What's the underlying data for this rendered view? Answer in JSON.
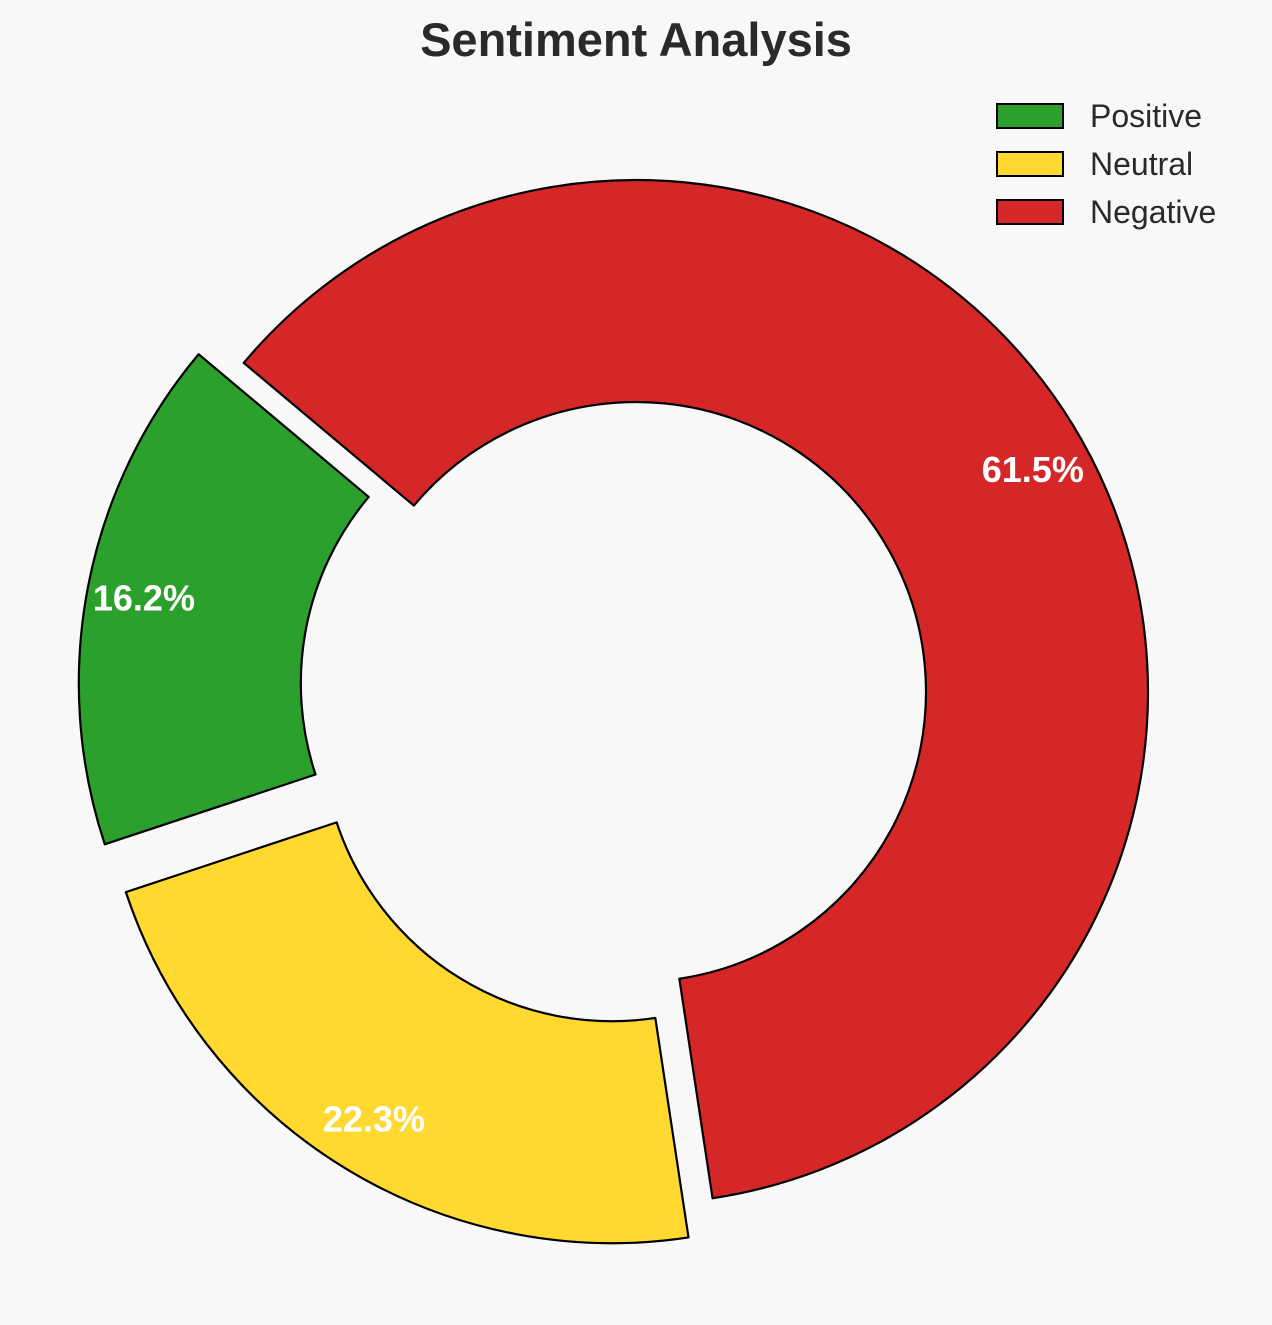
{
  "chart_data": {
    "type": "pie",
    "variant": "donut",
    "title": "Sentiment Analysis",
    "categories": [
      "Positive",
      "Neutral",
      "Negative"
    ],
    "values": [
      16.2,
      22.3,
      61.5
    ],
    "value_labels": [
      "16.2%",
      "22.3%",
      "61.5%"
    ],
    "colors": [
      "#2ca02c",
      "#ffd92f",
      "#d62728"
    ],
    "exploded": [
      true,
      true,
      false
    ],
    "legend": {
      "placement": "top-right",
      "entries": [
        "Positive",
        "Neutral",
        "Negative"
      ]
    }
  }
}
